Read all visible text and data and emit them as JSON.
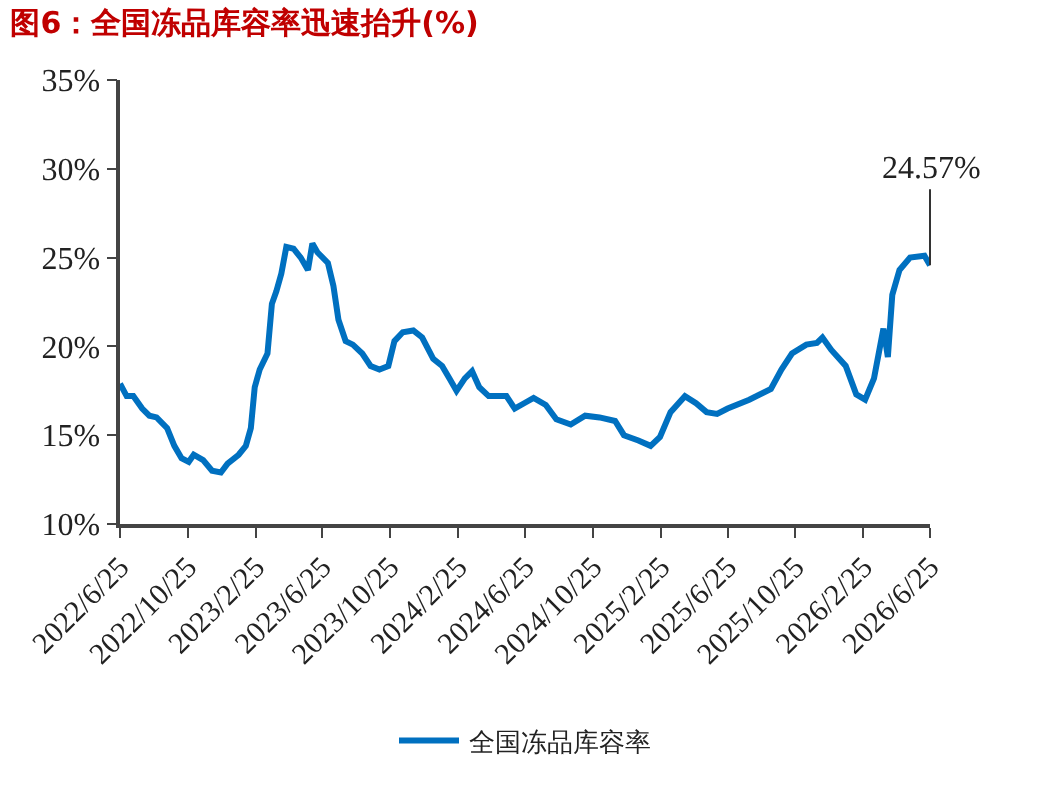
{
  "chart_data": {
    "type": "line",
    "title": "图6：全国冻品库容率迅速抬升(%)",
    "x": [
      "2022-06-25",
      "2022-07-07",
      "2022-07-19",
      "2022-08-04",
      "2022-08-17",
      "2022-08-30",
      "2022-09-18",
      "2022-10-01",
      "2022-10-14",
      "2022-10-27",
      "2022-11-05",
      "2022-11-22",
      "2022-12-08",
      "2022-12-24",
      "2023-01-05",
      "2023-01-25",
      "2023-02-07",
      "2023-02-16",
      "2023-02-23",
      "2023-03-04",
      "2023-03-18",
      "2023-03-26",
      "2023-04-03",
      "2023-04-12",
      "2023-04-21",
      "2023-05-04",
      "2023-05-17",
      "2023-05-30",
      "2023-06-07",
      "2023-06-16",
      "2023-07-05",
      "2023-07-15",
      "2023-07-24",
      "2023-08-06",
      "2023-08-19",
      "2023-09-05",
      "2023-09-20",
      "2023-10-06",
      "2023-10-22",
      "2023-11-02",
      "2023-11-17",
      "2023-12-06",
      "2023-12-22",
      "2024-01-11",
      "2024-01-27",
      "2024-02-09",
      "2024-02-22",
      "2024-03-08",
      "2024-03-21",
      "2024-04-03",
      "2024-04-20",
      "2024-05-03",
      "2024-05-22",
      "2024-06-06",
      "2024-06-23",
      "2024-07-10",
      "2024-08-01",
      "2024-08-20",
      "2024-09-15",
      "2024-10-11",
      "2024-11-06",
      "2024-12-04",
      "2024-12-20",
      "2025-01-15",
      "2025-02-06",
      "2025-02-23",
      "2025-03-14",
      "2025-04-09",
      "2025-04-29",
      "2025-05-18",
      "2025-06-06",
      "2025-06-25",
      "2025-08-03",
      "2025-09-11",
      "2025-09-30",
      "2025-10-19",
      "2025-11-14",
      "2025-12-03",
      "2025-12-13",
      "2025-12-29",
      "2026-01-24",
      "2026-02-12",
      "2026-02-28",
      "2026-03-16",
      "2026-04-02",
      "2026-04-10",
      "2026-04-18",
      "2026-05-01",
      "2026-05-20",
      "2026-06-15",
      "2026-06-25"
    ],
    "series": [
      {
        "name": "全国冻品库容率",
        "color": "#0070c0",
        "values": [
          17.9,
          17.2,
          17.2,
          16.5,
          16.1,
          16.0,
          15.4,
          14.4,
          13.7,
          13.5,
          13.9,
          13.6,
          13.0,
          12.9,
          13.4,
          13.9,
          14.4,
          15.4,
          17.7,
          18.7,
          19.6,
          22.4,
          23.1,
          24.1,
          25.6,
          25.5,
          25.0,
          24.3,
          25.8,
          25.3,
          24.7,
          23.4,
          21.5,
          20.3,
          20.1,
          19.6,
          18.9,
          18.7,
          18.9,
          20.3,
          20.8,
          20.9,
          20.5,
          19.3,
          18.9,
          18.2,
          17.5,
          18.2,
          18.6,
          17.7,
          17.2,
          17.2,
          17.2,
          16.5,
          16.8,
          17.1,
          16.7,
          15.9,
          15.6,
          16.1,
          16.0,
          15.8,
          15.0,
          14.7,
          14.4,
          14.9,
          16.3,
          17.2,
          16.8,
          16.3,
          16.2,
          16.5,
          17.0,
          17.6,
          18.7,
          19.6,
          20.1,
          20.2,
          20.5,
          19.8,
          18.9,
          17.3,
          17.0,
          18.2,
          21.0,
          19.4,
          22.9,
          24.3,
          25.0,
          25.1,
          24.57
        ]
      }
    ],
    "xlim": [
      "2022-06-25",
      "2026-06-25"
    ],
    "xticks": [
      {
        "value": "2022-06-25",
        "label": "2022/6/25"
      },
      {
        "value": "2022-10-25",
        "label": "2022/10/25"
      },
      {
        "value": "2023-02-25",
        "label": "2023/2/25"
      },
      {
        "value": "2023-06-25",
        "label": "2023/6/25"
      },
      {
        "value": "2023-10-25",
        "label": "2023/10/25"
      },
      {
        "value": "2024-02-25",
        "label": "2024/2/25"
      },
      {
        "value": "2024-06-25",
        "label": "2024/6/25"
      },
      {
        "value": "2024-10-25",
        "label": "2024/10/25"
      },
      {
        "value": "2025-02-25",
        "label": "2025/2/25"
      },
      {
        "value": "2025-06-25",
        "label": "2025/6/25"
      },
      {
        "value": "2025-10-25",
        "label": "2025/10/25"
      },
      {
        "value": "2026-02-25",
        "label": "2026/2/25"
      },
      {
        "value": "2026-06-25",
        "label": "2026/6/25"
      }
    ],
    "ylim": [
      10,
      35
    ],
    "yticks": [
      {
        "value": 10,
        "label": "10%"
      },
      {
        "value": 15,
        "label": "15%"
      },
      {
        "value": 20,
        "label": "20%"
      },
      {
        "value": 25,
        "label": "25%"
      },
      {
        "value": 30,
        "label": "30%"
      },
      {
        "value": 35,
        "label": "35%"
      }
    ],
    "annotations": [
      {
        "text": "24.57%",
        "x": "2026-06-25",
        "y": 24.57
      }
    ],
    "legend": "bottom",
    "marker": "none",
    "line_style": "solid"
  }
}
